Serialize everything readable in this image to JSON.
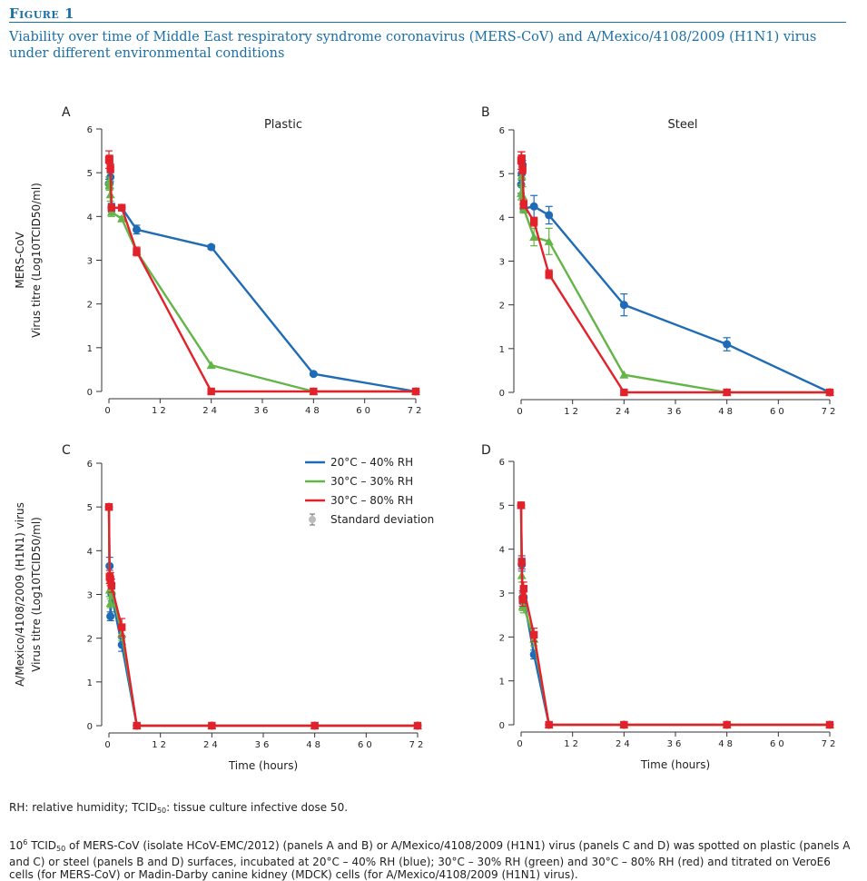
{
  "figure_label": "Figure 1",
  "figure_title": "Viability over time of Middle East respiratory syndrome coronavirus (MERS-CoV) and A/Mexico/4108/2009 (H1N1) virus under different environmental conditions",
  "colors": {
    "blue": "#1f6bb5",
    "green": "#63b547",
    "red": "#e2212b",
    "gray": "#888888",
    "accent": "#1a6fa8"
  },
  "chart_data": [
    {
      "panel": "A",
      "type": "line",
      "title": "Plastic",
      "xlabel": "",
      "xlim": [
        0,
        72
      ],
      "xticks": [
        "0",
        "12",
        "24",
        "36",
        "48",
        "60",
        "72"
      ],
      "xtick_values": [
        0,
        12,
        24,
        36,
        48,
        60,
        72
      ],
      "ylabel_line1": "MERS-CoV",
      "ylabel_line2": "Virus titre (Log10TCID50/ml)",
      "ylim": [
        0,
        6
      ],
      "yticks": [
        "0",
        "1",
        "2",
        "3",
        "4",
        "5",
        "6"
      ],
      "series": [
        {
          "name": "20°C – 40% RH",
          "color": "blue",
          "marker": "circle",
          "x": [
            0,
            0.25,
            0.5,
            1,
            4,
            8,
            24,
            48,
            72
          ],
          "y": [
            4.75,
            4.75,
            4.9,
            4.2,
            4.2,
            3.7,
            3.3,
            0.4,
            0
          ],
          "err": [
            0.1,
            0.1,
            0.1,
            0.1,
            0.05,
            0.1,
            0.05,
            0,
            0
          ]
        },
        {
          "name": "30°C – 30% RH",
          "color": "green",
          "marker": "triangle",
          "x": [
            0,
            0.25,
            0.5,
            1,
            4,
            8,
            24,
            48,
            72
          ],
          "y": [
            4.8,
            4.7,
            4.5,
            4.1,
            3.95,
            3.2,
            0.6,
            0,
            0
          ],
          "err": [
            0.1,
            0.1,
            0.15,
            0.1,
            0.05,
            0.05,
            0,
            0,
            0
          ]
        },
        {
          "name": "30°C – 80% RH",
          "color": "red",
          "marker": "square",
          "x": [
            0,
            0.25,
            0.5,
            1,
            4,
            8,
            24,
            48,
            72
          ],
          "y": [
            5.3,
            5.3,
            5.1,
            4.2,
            4.2,
            3.2,
            0,
            0,
            0
          ],
          "err": [
            0.2,
            0.1,
            0.1,
            0.05,
            0.05,
            0.1,
            0,
            0,
            0
          ]
        }
      ]
    },
    {
      "panel": "B",
      "type": "line",
      "title": "Steel",
      "xlabel": "",
      "xlim": [
        0,
        72
      ],
      "xticks": [
        "0",
        "12",
        "24",
        "36",
        "48",
        "60",
        "72"
      ],
      "xtick_values": [
        0,
        12,
        24,
        36,
        48,
        60,
        72
      ],
      "ylim": [
        0,
        6
      ],
      "yticks": [
        "0",
        "1",
        "2",
        "3",
        "4",
        "5",
        "6"
      ],
      "series": [
        {
          "name": "20°C – 40% RH",
          "color": "blue",
          "marker": "circle",
          "x": [
            0,
            0.25,
            0.5,
            1,
            4,
            8,
            24,
            48,
            72
          ],
          "y": [
            4.75,
            5.0,
            5.2,
            4.2,
            4.25,
            4.05,
            2.0,
            1.1,
            0
          ],
          "err": [
            0.2,
            0.15,
            0.1,
            0.1,
            0.25,
            0.2,
            0.25,
            0.15,
            0
          ]
        },
        {
          "name": "30°C – 30% RH",
          "color": "green",
          "marker": "triangle",
          "x": [
            0,
            0.25,
            0.5,
            1,
            4,
            8,
            24,
            48,
            72
          ],
          "y": [
            4.55,
            4.95,
            4.5,
            4.2,
            3.55,
            3.45,
            0.4,
            0,
            0
          ],
          "err": [
            0.15,
            0.2,
            0.2,
            0.1,
            0.2,
            0.3,
            0,
            0,
            0
          ]
        },
        {
          "name": "30°C – 80% RH",
          "color": "red",
          "marker": "square",
          "x": [
            0,
            0.25,
            0.5,
            1,
            4,
            8,
            24,
            48,
            72
          ],
          "y": [
            5.3,
            5.35,
            5.1,
            4.3,
            3.9,
            2.7,
            0,
            0,
            0
          ],
          "err": [
            0.2,
            0.15,
            0.1,
            0.1,
            0.1,
            0.1,
            0,
            0,
            0
          ]
        }
      ]
    },
    {
      "panel": "C",
      "type": "line",
      "title": "",
      "xlabel": "Time (hours)",
      "xlim": [
        0,
        72
      ],
      "xticks": [
        "0",
        "12",
        "24",
        "36",
        "48",
        "60",
        "72"
      ],
      "xtick_values": [
        0,
        12,
        24,
        36,
        48,
        60,
        72
      ],
      "ylabel_line1": "A/Mexico/4108/2009 (H1N1) virus",
      "ylabel_line2": "Virus titre (Log10TCID50/ml)",
      "ylim": [
        0,
        6
      ],
      "yticks": [
        "0",
        "1",
        "2",
        "3",
        "4",
        "5",
        "6"
      ],
      "series": [
        {
          "name": "20°C – 40% RH",
          "color": "blue",
          "marker": "circle",
          "x": [
            0,
            0.25,
            0.5,
            1,
            4,
            8,
            24,
            48,
            72
          ],
          "y": [
            5.0,
            3.65,
            2.5,
            3.0,
            1.85,
            0,
            0,
            0,
            0
          ],
          "err": [
            0.05,
            0.2,
            0.1,
            0.15,
            0.15,
            0,
            0,
            0,
            0
          ]
        },
        {
          "name": "30°C – 30% RH",
          "color": "green",
          "marker": "triangle",
          "x": [
            0,
            0.25,
            0.5,
            1,
            4,
            8,
            24,
            48,
            72
          ],
          "y": [
            5.0,
            3.1,
            2.8,
            3.1,
            2.1,
            0,
            0,
            0,
            0
          ],
          "err": [
            0.05,
            0.15,
            0.1,
            0.15,
            0.15,
            0,
            0,
            0,
            0
          ]
        },
        {
          "name": "30°C – 80% RH",
          "color": "red",
          "marker": "square",
          "x": [
            0,
            0.25,
            0.5,
            1,
            4,
            8,
            24,
            48,
            72
          ],
          "y": [
            5.0,
            3.4,
            3.35,
            3.2,
            2.25,
            0,
            0,
            0,
            0
          ],
          "err": [
            0.05,
            0.15,
            0.15,
            0.15,
            0.2,
            0,
            0,
            0,
            0
          ]
        }
      ]
    },
    {
      "panel": "D",
      "type": "line",
      "title": "",
      "xlabel": "Time (hours)",
      "xlim": [
        0,
        72
      ],
      "xticks": [
        "0",
        "12",
        "24",
        "36",
        "48",
        "60",
        "72"
      ],
      "xtick_values": [
        0,
        12,
        24,
        36,
        48,
        60,
        72
      ],
      "ylim": [
        0,
        6
      ],
      "yticks": [
        "0",
        "1",
        "2",
        "3",
        "4",
        "5",
        "6"
      ],
      "series": [
        {
          "name": "20°C – 40% RH",
          "color": "blue",
          "marker": "circle",
          "x": [
            0,
            0.25,
            0.5,
            1,
            4,
            8,
            24,
            48,
            72
          ],
          "y": [
            5.0,
            3.65,
            2.9,
            2.9,
            1.6,
            0,
            0,
            0,
            0
          ],
          "err": [
            0.05,
            0.15,
            0.15,
            0.15,
            0.1,
            0,
            0,
            0,
            0
          ]
        },
        {
          "name": "30°C – 30% RH",
          "color": "green",
          "marker": "triangle",
          "x": [
            0,
            0.25,
            0.5,
            1,
            4,
            8,
            24,
            48,
            72
          ],
          "y": [
            5.0,
            3.4,
            2.7,
            2.7,
            1.95,
            0,
            0,
            0,
            0
          ],
          "err": [
            0.05,
            0.15,
            0.1,
            0.15,
            0.15,
            0,
            0,
            0,
            0
          ]
        },
        {
          "name": "30°C – 80% RH",
          "color": "red",
          "marker": "square",
          "x": [
            0,
            0.25,
            0.5,
            1,
            4,
            8,
            24,
            48,
            72
          ],
          "y": [
            5.0,
            3.7,
            2.85,
            3.1,
            2.05,
            0,
            0,
            0,
            0
          ],
          "err": [
            0.05,
            0.15,
            0.15,
            0.15,
            0.15,
            0,
            0,
            0,
            0
          ]
        }
      ]
    }
  ],
  "legend": [
    {
      "label": "20°C – 40% RH",
      "color": "blue"
    },
    {
      "label": "30°C – 30% RH",
      "color": "green"
    },
    {
      "label": "30°C – 80% RH",
      "color": "red"
    },
    {
      "label": "Standard deviation",
      "color": "gray"
    }
  ],
  "notes": {
    "abbrev_a": "RH: relative humidity; TCID",
    "abbrev_sub": "50",
    "abbrev_b": ": tissue culture infective dose 50.",
    "method_a": "10",
    "method_sup": "6",
    "method_b": " TCID",
    "method_sub": "50",
    "method_c": " of MERS-CoV (isolate HCoV-EMC/2012) (panels A and B) or A/Mexico/4108/2009 (H1N1) virus (panels C and D) was spotted on plastic (panels A and C) or steel (panels B and D) surfaces, incubated at 20°C – 40% RH (blue); 30°C – 30% RH (green) and 30°C – 80% RH (red) and titrated on VeroE6 cells (for MERS-CoV) or Madin-Darby canine kidney (MDCK) cells (for A/Mexico/4108/2009 (H1N1) virus)."
  }
}
